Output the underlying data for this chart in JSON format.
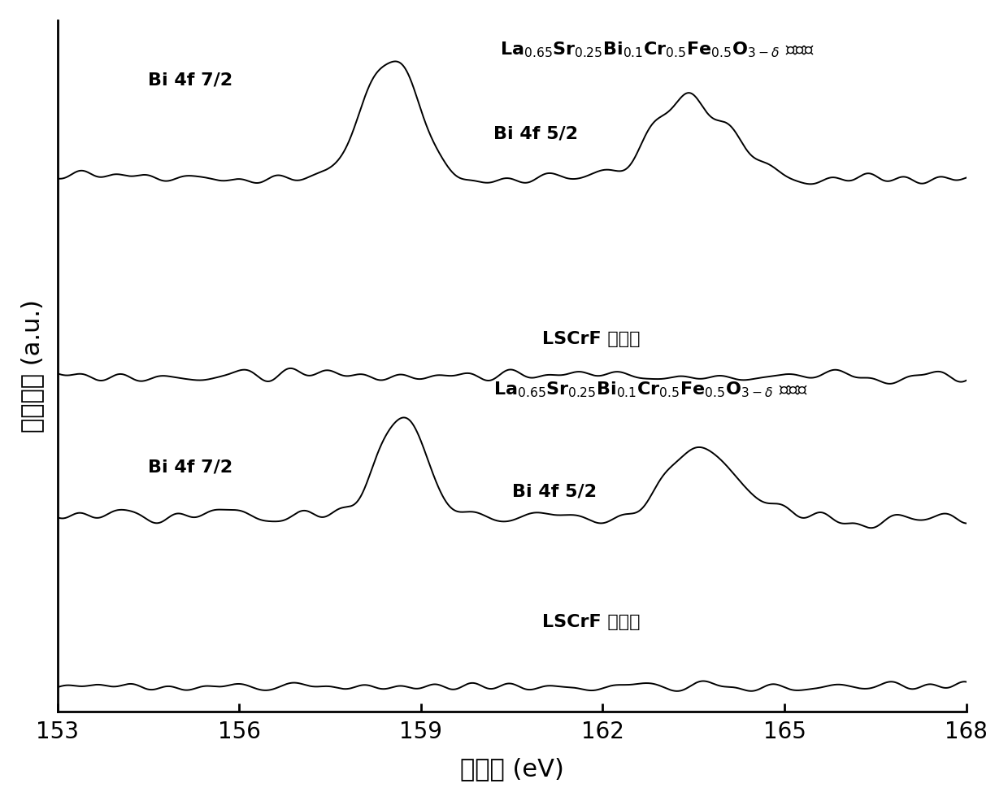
{
  "xlim": [
    153,
    168
  ],
  "xticks": [
    153,
    156,
    159,
    162,
    165,
    168
  ],
  "xlabel": "结合能 (eV)",
  "ylabel": "相对强度 (a.u.)",
  "background_color": "#ffffff",
  "line_color": "#000000",
  "label_fontsize": 22,
  "tick_fontsize": 20,
  "annotation_fontsize": 16,
  "curve_offsets": [
    8.5,
    5.2,
    2.8,
    0.0
  ],
  "noise_seed": 42
}
